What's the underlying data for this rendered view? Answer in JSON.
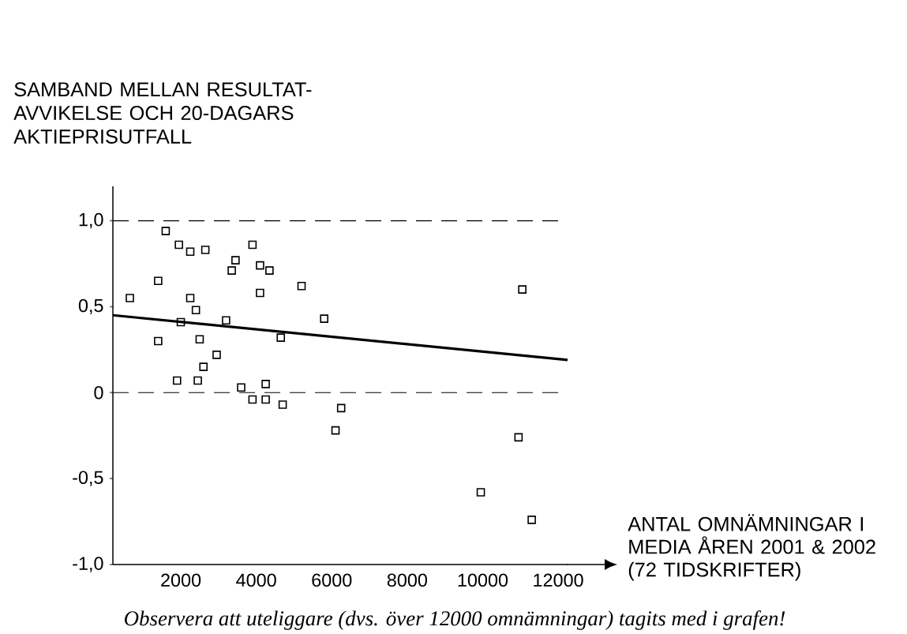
{
  "chart_data": {
    "type": "scatter",
    "ylabel": "SAMBAND MELLAN RESULTAT-AVVIKELSE OCH 20-DAGARS AKTIEPRISUTFALL",
    "xlabel": "ANTAL OMNÄMNINGAR I MEDIA ÅREN 2001 & 2002 (72 TIDSKRIFTER)",
    "annotations": [
      "Observera att uteliggare (dvs. över 12000 omnämningar) tagits med i grafen!"
    ],
    "xlim": [
      200,
      12250
    ],
    "ylim": [
      -1,
      1.2
    ],
    "xticks": [
      2000,
      4000,
      6000,
      8000,
      10000,
      12000
    ],
    "yticks": [
      {
        "value": -1,
        "label": "-1,0"
      },
      {
        "value": -0.5,
        "label": "-0,5"
      },
      {
        "value": 0,
        "label": "0"
      },
      {
        "value": 0.5,
        "label": "0,5"
      },
      {
        "value": 1,
        "label": "1,0"
      }
    ],
    "ref_lines": [
      {
        "axis": "y",
        "value": 1,
        "color": "#000000",
        "line_style": "dashed"
      },
      {
        "axis": "y",
        "value": 0,
        "color": "#000000",
        "line_style": "dashed"
      }
    ],
    "grid": false,
    "series": [
      {
        "color": "#000000",
        "marker": "square",
        "x": [
          650,
          1400,
          1600,
          1400,
          1950,
          2250,
          2650,
          2250,
          2400,
          2000,
          2500,
          2950,
          2600,
          1900,
          2450,
          3200,
          3350,
          3450,
          3900,
          4100,
          4350,
          4100,
          5200,
          5800,
          4650,
          3600,
          4250,
          3900,
          4250,
          4700,
          6250,
          6100,
          11050,
          10950,
          9950,
          11300
        ],
        "values": [
          0.55,
          0.65,
          0.94,
          0.3,
          0.86,
          0.82,
          0.83,
          0.55,
          0.48,
          0.41,
          0.31,
          0.22,
          0.15,
          0.07,
          0.07,
          0.42,
          0.71,
          0.77,
          0.86,
          0.74,
          0.71,
          0.58,
          0.62,
          0.43,
          0.32,
          0.03,
          0.05,
          -0.04,
          -0.04,
          -0.07,
          -0.09,
          -0.22,
          0.6,
          -0.26,
          -0.58,
          -0.74
        ]
      },
      {
        "type": "line",
        "color": "#000000",
        "marker": "none",
        "line_style": "solid",
        "x": [
          200,
          12250
        ],
        "values": [
          0.45,
          0.19
        ]
      }
    ]
  }
}
